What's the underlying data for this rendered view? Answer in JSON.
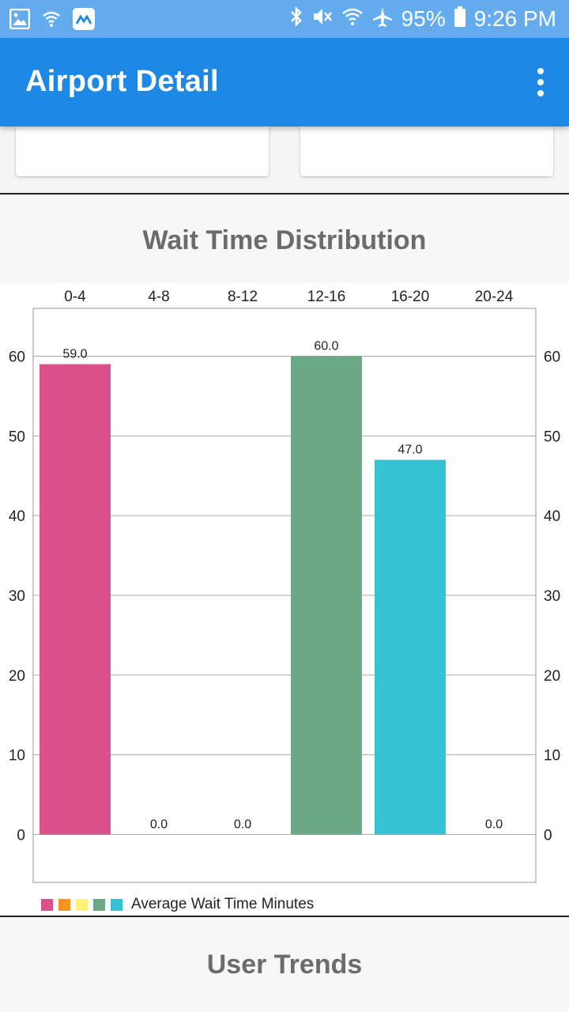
{
  "status_bar": {
    "battery": "95%",
    "time": "9:26 PM",
    "icons": [
      "image-icon",
      "wifi-icon",
      "app-icon",
      "bluetooth-icon",
      "mute-icon",
      "wifi-signal-icon",
      "airplane-icon",
      "battery-icon"
    ]
  },
  "app_bar": {
    "title": "Airport Detail",
    "menu_icon": "overflow-menu-icon"
  },
  "sections": {
    "wait_time_title": "Wait Time Distribution",
    "user_trends_title": "User Trends"
  },
  "colors": {
    "status_bar": "#64acee",
    "app_bar": "#1e88e5",
    "bar_0_4": "#d9508a",
    "bar_4_8": "#f7931e",
    "bar_8_12": "#fff275",
    "bar_12_16": "#6aa886",
    "bar_16_20": "#35c3d3",
    "section_text": "#6b6b6b"
  },
  "chart_data": {
    "type": "bar",
    "categories": [
      "0-4",
      "4-8",
      "8-12",
      "12-16",
      "16-20",
      "20-24"
    ],
    "series": [
      {
        "name": "Average Wait Time Minutes",
        "values": [
          59.0,
          0.0,
          0.0,
          60.0,
          47.0,
          0.0
        ]
      }
    ],
    "value_labels": [
      "59.0",
      "0.0",
      "0.0",
      "60.0",
      "47.0",
      "0.0"
    ],
    "bar_colors": [
      "#d9508a",
      "#f7931e",
      "#fff275",
      "#6aa886",
      "#35c3d3",
      "#35c3d3"
    ],
    "y_ticks": [
      "0",
      "10",
      "20",
      "30",
      "40",
      "50",
      "60"
    ],
    "ylim": [
      -6,
      66
    ],
    "grid": true,
    "legend": "bottom-left",
    "legend_swatches": [
      "#d9508a",
      "#f7931e",
      "#fff275",
      "#6aa886",
      "#35c3d3"
    ]
  }
}
